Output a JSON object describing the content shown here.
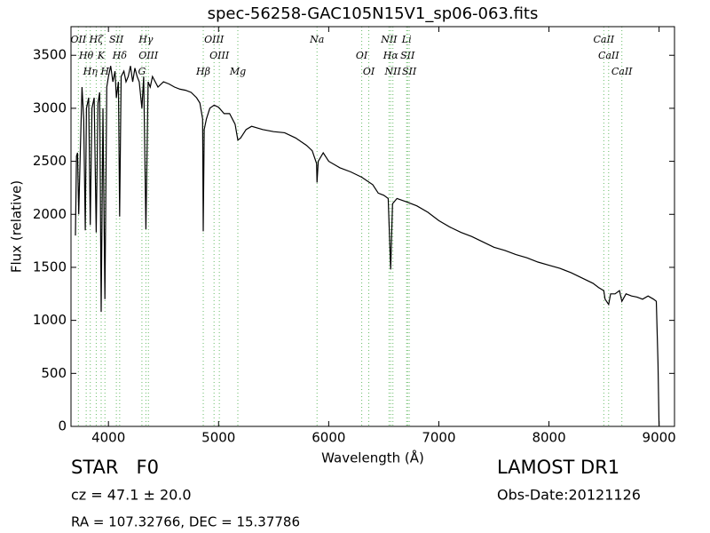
{
  "chart_data": {
    "type": "line",
    "title": "spec-56258-GAC105N15V1_sp06-063.fits",
    "xlabel": "Wavelength (Å)",
    "ylabel": "Flux (relative)",
    "xlim": [
      3660,
      9140
    ],
    "ylim": [
      0,
      3770
    ],
    "xticks": [
      4000,
      5000,
      6000,
      7000,
      8000,
      9000
    ],
    "yticks": [
      0,
      500,
      1000,
      1500,
      2000,
      2500,
      3000,
      3500
    ],
    "line_color": "#66bb66",
    "lines": [
      {
        "label": "OII",
        "wavelength": 3727
      },
      {
        "label": "Hθ",
        "wavelength": 3798
      },
      {
        "label": "Hη",
        "wavelength": 3835
      },
      {
        "label": "Hζ",
        "wavelength": 3889
      },
      {
        "label": "K",
        "wavelength": 3934
      },
      {
        "label": "H",
        "wavelength": 3968
      },
      {
        "label": "SII",
        "wavelength": 4072
      },
      {
        "label": "Hδ",
        "wavelength": 4102
      },
      {
        "label": "G",
        "wavelength": 4304
      },
      {
        "label": "Hγ",
        "wavelength": 4340
      },
      {
        "label": "OIII",
        "wavelength": 4363
      },
      {
        "label": "Hβ",
        "wavelength": 4861
      },
      {
        "label": "OIII",
        "wavelength": 4959
      },
      {
        "label": "OIII",
        "wavelength": 5007
      },
      {
        "label": "Mg",
        "wavelength": 5175
      },
      {
        "label": "Na",
        "wavelength": 5894
      },
      {
        "label": "OI",
        "wavelength": 6300
      },
      {
        "label": "OI",
        "wavelength": 6364
      },
      {
        "label": "NII",
        "wavelength": 6548
      },
      {
        "label": "Hα",
        "wavelength": 6563
      },
      {
        "label": "NII",
        "wavelength": 6583
      },
      {
        "label": "Li",
        "wavelength": 6708
      },
      {
        "label": "SII",
        "wavelength": 6716
      },
      {
        "label": "SII",
        "wavelength": 6731
      },
      {
        "label": "CaII",
        "wavelength": 8498
      },
      {
        "label": "CaII",
        "wavelength": 8542
      },
      {
        "label": "CaII",
        "wavelength": 8662
      }
    ],
    "x": [
      3700,
      3710,
      3720,
      3730,
      3745,
      3760,
      3775,
      3790,
      3800,
      3820,
      3835,
      3850,
      3870,
      3889,
      3905,
      3920,
      3934,
      3950,
      3968,
      3985,
      4000,
      4020,
      4040,
      4060,
      4072,
      4090,
      4102,
      4115,
      4140,
      4160,
      4180,
      4200,
      4220,
      4240,
      4260,
      4280,
      4304,
      4320,
      4340,
      4360,
      4380,
      4400,
      4450,
      4500,
      4550,
      4600,
      4650,
      4700,
      4750,
      4800,
      4830,
      4855,
      4861,
      4870,
      4890,
      4920,
      4960,
      5000,
      5050,
      5100,
      5150,
      5175,
      5200,
      5250,
      5300,
      5400,
      5500,
      5600,
      5700,
      5800,
      5850,
      5890,
      5894,
      5905,
      5950,
      6000,
      6100,
      6200,
      6300,
      6400,
      6450,
      6500,
      6540,
      6563,
      6580,
      6620,
      6700,
      6800,
      6900,
      7000,
      7100,
      7200,
      7300,
      7400,
      7500,
      7600,
      7700,
      7800,
      7900,
      8000,
      8100,
      8200,
      8300,
      8400,
      8450,
      8498,
      8510,
      8542,
      8560,
      8600,
      8640,
      8662,
      8700,
      8750,
      8800,
      8850,
      8900,
      8950,
      8975,
      8990,
      9000
    ],
    "series": [
      {
        "color": "#000000",
        "values": [
          1800,
          2550,
          2580,
          2000,
          2600,
          3200,
          2900,
          1850,
          3000,
          3100,
          1900,
          3000,
          3100,
          1830,
          3050,
          3150,
          1080,
          3000,
          1200,
          3200,
          3300,
          3400,
          3250,
          3350,
          3100,
          3250,
          1980,
          3300,
          3350,
          3250,
          3300,
          3400,
          3250,
          3380,
          3300,
          3250,
          3000,
          3300,
          1860,
          3250,
          3200,
          3300,
          3200,
          3250,
          3230,
          3200,
          3180,
          3170,
          3150,
          3100,
          3050,
          2900,
          1840,
          2800,
          2900,
          3000,
          3030,
          3010,
          2950,
          2950,
          2850,
          2700,
          2720,
          2800,
          2830,
          2800,
          2780,
          2770,
          2720,
          2650,
          2600,
          2480,
          2300,
          2500,
          2580,
          2500,
          2440,
          2400,
          2350,
          2280,
          2200,
          2180,
          2150,
          1480,
          2100,
          2150,
          2120,
          2080,
          2020,
          1940,
          1880,
          1830,
          1790,
          1740,
          1690,
          1660,
          1620,
          1590,
          1550,
          1520,
          1490,
          1450,
          1400,
          1350,
          1310,
          1280,
          1200,
          1150,
          1250,
          1250,
          1280,
          1180,
          1250,
          1230,
          1220,
          1200,
          1230,
          1200,
          1180,
          600,
          0
        ]
      }
    ],
    "annotations": [
      "STAR   F0",
      "cz = 47.1 ± 20.0",
      "RA = 107.32766, DEC = 15.37786",
      "LAMOST DR1",
      "Obs-Date:20121126"
    ]
  }
}
